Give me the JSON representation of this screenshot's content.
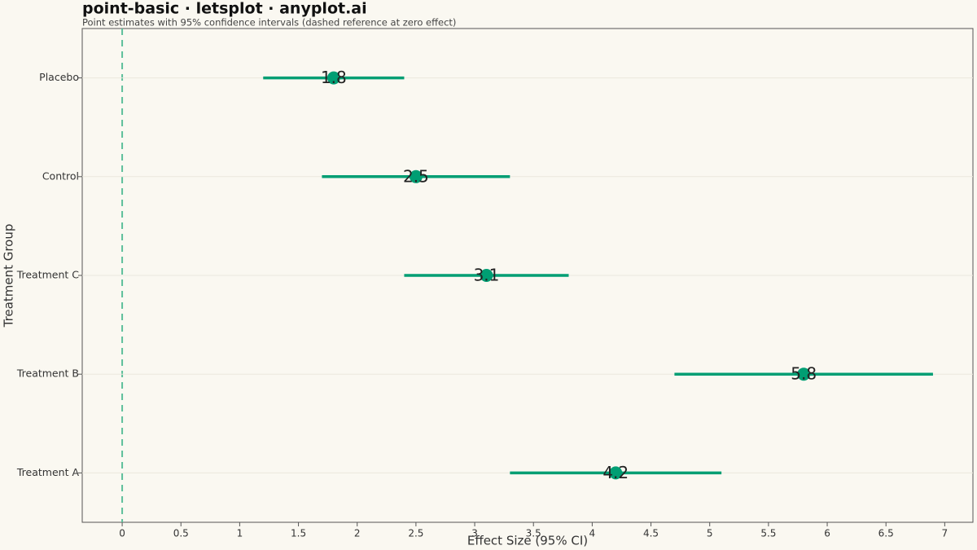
{
  "chart_data": {
    "type": "pointrange",
    "title": "point-basic · letsplot · anyplot.ai",
    "subtitle": "Point estimates with 95% confidence intervals (dashed reference at zero effect)",
    "x_label": "Effect Size (95% CI)",
    "y_label": "Treatment Group",
    "categories": [
      "Treatment A",
      "Treatment B",
      "Treatment C",
      "Control",
      "Placebo"
    ],
    "values": [
      4.2,
      5.8,
      3.1,
      2.5,
      1.8
    ],
    "lower": [
      3.3,
      4.7,
      2.4,
      1.7,
      1.2
    ],
    "upper": [
      5.1,
      6.9,
      3.8,
      3.3,
      2.4
    ],
    "color": "#009e73",
    "reference_x": 0,
    "reference_color": "#5cbf9a",
    "xlim": [
      -0.34,
      7.24
    ],
    "xticks": [
      0,
      0.5,
      1,
      1.5,
      2,
      2.5,
      3,
      3.5,
      4,
      4.5,
      5,
      5.5,
      6,
      6.5,
      7
    ],
    "grid": true
  }
}
